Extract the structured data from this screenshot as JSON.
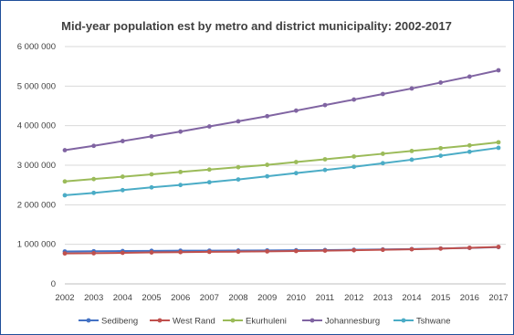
{
  "chart_data": {
    "type": "line",
    "title": "Mid-year population est by metro and district municipality: 2002-2017",
    "xlabel": "",
    "ylabel": "",
    "x": [
      "2002",
      "2003",
      "2004",
      "2005",
      "2006",
      "2007",
      "2008",
      "2009",
      "2010",
      "2011",
      "2012",
      "2013",
      "2014",
      "2015",
      "2016",
      "2017"
    ],
    "ylim": [
      0,
      6000000
    ],
    "yticks": [
      0,
      1000000,
      2000000,
      3000000,
      4000000,
      5000000,
      6000000
    ],
    "ytick_labels": [
      "0",
      "1 000 000",
      "2 000 000",
      "3 000 000",
      "4 000 000",
      "5 000 000",
      "6 000 000"
    ],
    "grid": "horizontal",
    "legend_position": "bottom",
    "series": [
      {
        "name": "Sedibeng",
        "color": "#4472c4",
        "values": [
          820000,
          825000,
          830000,
          835000,
          838000,
          840000,
          842000,
          845000,
          850000,
          855000,
          862000,
          870000,
          880000,
          895000,
          910000,
          930000
        ]
      },
      {
        "name": "West Rand",
        "color": "#c0504d",
        "values": [
          770000,
          775000,
          785000,
          795000,
          803000,
          810000,
          815000,
          822000,
          830000,
          840000,
          850000,
          862000,
          875000,
          892000,
          912000,
          935000
        ]
      },
      {
        "name": "Ekurhuleni",
        "color": "#9bbb59",
        "values": [
          2590000,
          2650000,
          2710000,
          2770000,
          2830000,
          2890000,
          2950000,
          3010000,
          3080000,
          3150000,
          3220000,
          3290000,
          3360000,
          3430000,
          3500000,
          3580000
        ]
      },
      {
        "name": "Johannesburg",
        "color": "#8064a2",
        "values": [
          3380000,
          3490000,
          3610000,
          3730000,
          3850000,
          3980000,
          4110000,
          4240000,
          4380000,
          4520000,
          4660000,
          4800000,
          4940000,
          5090000,
          5240000,
          5400000
        ]
      },
      {
        "name": "Tshwane",
        "color": "#4bacc6",
        "values": [
          2240000,
          2300000,
          2370000,
          2440000,
          2500000,
          2570000,
          2640000,
          2720000,
          2800000,
          2880000,
          2960000,
          3050000,
          3140000,
          3240000,
          3340000,
          3440000
        ]
      }
    ]
  }
}
